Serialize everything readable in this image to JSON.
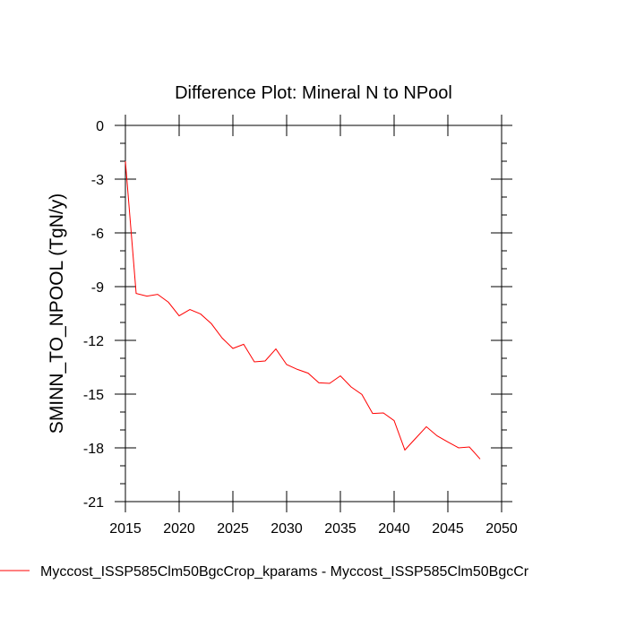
{
  "chart_data": {
    "type": "line",
    "title": "Difference Plot: Mineral N to NPool",
    "xlabel": "",
    "ylabel": "SMINN_TO_NPOOL  (TgN/y)",
    "xlim": [
      2015,
      2050
    ],
    "ylim": [
      -21,
      0
    ],
    "xticks": [
      2015,
      2020,
      2025,
      2030,
      2035,
      2040,
      2045,
      2050
    ],
    "yticks": [
      0,
      -3,
      -6,
      -9,
      -12,
      -15,
      -18,
      -21
    ],
    "grid": false,
    "legend_position": "bottom",
    "series": [
      {
        "name": "Myccost_ISSP585Clm50BgcCrop_kparams - Myccost_ISSP585Clm50BgcCr",
        "color": "#ff0000",
        "x": [
          2015,
          2016,
          2017,
          2018,
          2019,
          2020,
          2021,
          2022,
          2023,
          2024,
          2025,
          2026,
          2027,
          2028,
          2029,
          2030,
          2031,
          2032,
          2033,
          2034,
          2035,
          2036,
          2037,
          2038,
          2039,
          2040,
          2041,
          2042,
          2043,
          2044,
          2045,
          2046,
          2047,
          2048
        ],
        "y": [
          -2.0,
          -9.38,
          -9.53,
          -9.43,
          -9.87,
          -10.63,
          -10.28,
          -10.53,
          -11.07,
          -11.87,
          -12.45,
          -12.22,
          -13.2,
          -13.15,
          -12.48,
          -13.35,
          -13.62,
          -13.83,
          -14.37,
          -14.4,
          -13.98,
          -14.6,
          -15.02,
          -16.08,
          -16.05,
          -16.48,
          -18.12,
          -17.47,
          -16.82,
          -17.33,
          -17.67,
          -18.0,
          -17.95,
          -18.62
        ]
      }
    ]
  }
}
